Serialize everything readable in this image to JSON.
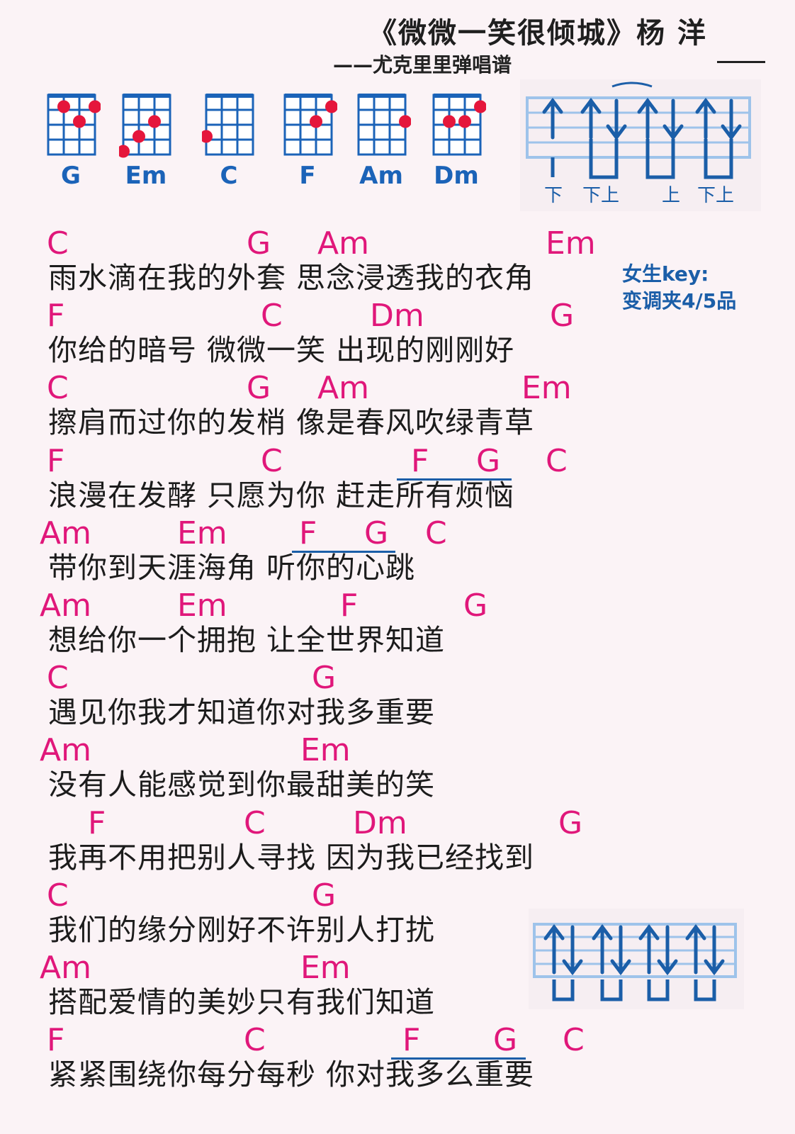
{
  "header": {
    "title": "《微微一笑很倾城》杨 洋",
    "subtitle": "——尤克里里弹唱谱",
    "trailing_dash": "——"
  },
  "chords": [
    {
      "name": "G",
      "dots": [
        [
          1,
          0
        ],
        [
          2,
          1
        ],
        [
          3,
          0
        ]
      ]
    },
    {
      "name": "Em",
      "dots": [
        [
          0,
          3
        ],
        [
          1,
          2
        ],
        [
          2,
          1
        ]
      ]
    },
    {
      "name": "C",
      "dots": [
        [
          0,
          2
        ]
      ]
    },
    {
      "name": "F",
      "dots": [
        [
          2,
          1
        ],
        [
          3,
          0
        ]
      ]
    },
    {
      "name": "Am",
      "dots": [
        [
          3,
          1
        ]
      ]
    },
    {
      "name": "Dm",
      "dots": [
        [
          1,
          1
        ],
        [
          2,
          1
        ],
        [
          3,
          0
        ]
      ]
    }
  ],
  "strum_pattern_1": {
    "arrows": [
      "up",
      "up",
      "down",
      "up",
      "down",
      "up",
      "down"
    ],
    "labels": [
      "下",
      "下上",
      "上",
      "下上"
    ]
  },
  "strum_pattern_2": {
    "arrows": [
      "up",
      "down",
      "up",
      "down",
      "up",
      "down",
      "up",
      "down"
    ]
  },
  "note": {
    "line1": "女生key:",
    "line2": "变调夹4/5品"
  },
  "song_lines": [
    {
      "lyric": "雨水滴在我的外套  思念浸透我的衣角",
      "chords": [
        "C",
        "G",
        "Am",
        "Em"
      ]
    },
    {
      "lyric": "你给的暗号  微微一笑  出现的刚刚好",
      "chords": [
        "F",
        "C",
        "Dm",
        "G"
      ]
    },
    {
      "lyric": "擦肩而过你的发梢  像是春风吹绿青草",
      "chords": [
        "C",
        "G",
        "Am",
        "Em"
      ]
    },
    {
      "lyric": "浪漫在发酵  只愿为你  赶走所有烦恼",
      "chords": [
        "F",
        "C",
        "F",
        "G",
        "C"
      ]
    },
    {
      "lyric": "带你到天涯海角  听你的心跳",
      "chords": [
        "Am",
        "Em",
        "F",
        "G",
        "C"
      ]
    },
    {
      "lyric": "想给你一个拥抱  让全世界知道",
      "chords": [
        "Am",
        "Em",
        "F",
        "G"
      ]
    },
    {
      "lyric": "遇见你我才知道你对我多重要",
      "chords": [
        "C",
        "G"
      ]
    },
    {
      "lyric": "没有人能感觉到你最甜美的笑",
      "chords": [
        "Am",
        "Em"
      ]
    },
    {
      "lyric": "我再不用把别人寻找  因为我已经找到",
      "chords": [
        "F",
        "C",
        "Dm",
        "G"
      ]
    },
    {
      "lyric": "我们的缘分刚好不许别人打扰",
      "chords": [
        "C",
        "G"
      ]
    },
    {
      "lyric": "搭配爱情的美妙只有我们知道",
      "chords": [
        "Am",
        "Em"
      ]
    },
    {
      "lyric": "紧紧围绕你每分每秒  你对我多么重要",
      "chords": [
        "F",
        "C",
        "F",
        "G",
        "C"
      ]
    }
  ],
  "colors": {
    "chord_text": "#e0177a",
    "diagram_blue": "#1b63b8",
    "dot_red": "#e5163b",
    "background": "#fbf3f6"
  }
}
